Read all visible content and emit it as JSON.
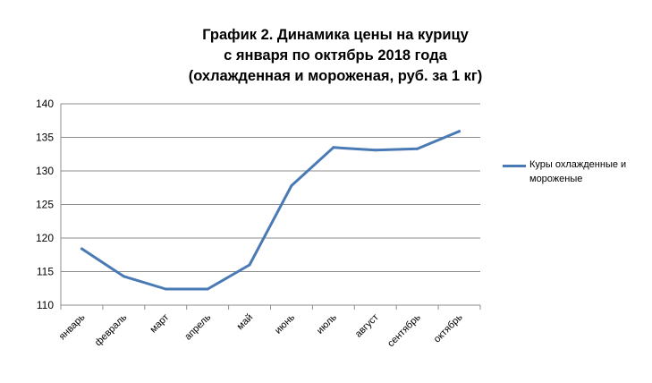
{
  "chart_data": {
    "type": "line",
    "title_lines": [
      "График 2. Динамика цены на курицу",
      "с января по октябрь 2018 года",
      "(охлажденная и мороженая, руб. за 1 кг)"
    ],
    "categories": [
      "январь",
      "февраль",
      "март",
      "апрель",
      "май",
      "июнь",
      "июль",
      "август",
      "сентябрь",
      "октябрь"
    ],
    "series": [
      {
        "name": "Куры охлажденные и мороженые",
        "color": "#4a7ab5",
        "values": [
          118.4,
          114.3,
          112.4,
          112.4,
          116.0,
          127.8,
          133.5,
          133.1,
          133.3,
          135.9
        ]
      }
    ],
    "ylim": [
      110,
      140
    ],
    "yticks": [
      110,
      115,
      120,
      125,
      130,
      135,
      140
    ],
    "grid": true,
    "legend_position": "right"
  }
}
